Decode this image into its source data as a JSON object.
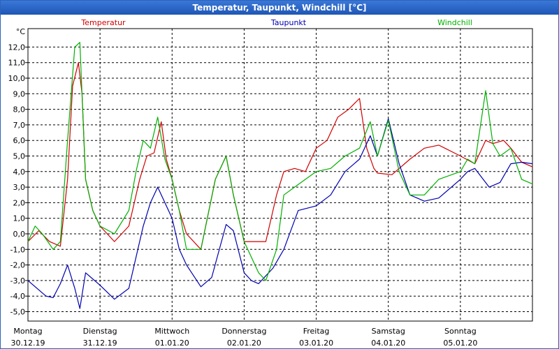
{
  "window": {
    "title": "Temperatur, Taupunkt, Windchill [°C]"
  },
  "chart_data": {
    "type": "line",
    "title": "Temperatur, Taupunkt, Windchill [°C]",
    "unit_label": "°C",
    "ylim": [
      -6,
      13
    ],
    "y_ticks": [
      "12,0",
      "11,0",
      "10,0",
      "9,0",
      "8,0",
      "7,0",
      "6,0",
      "5,0",
      "4,0",
      "3,0",
      "2,0",
      "1,0",
      "0,0",
      "-1,0",
      "-2,0",
      "-3,0",
      "-4,0",
      "-5,0"
    ],
    "y_tick_values": [
      12,
      11,
      10,
      9,
      8,
      7,
      6,
      5,
      4,
      3,
      2,
      1,
      0,
      -1,
      -2,
      -3,
      -4,
      -5
    ],
    "xlim": [
      0,
      7
    ],
    "day_labels": [
      {
        "day": "Montag",
        "date": "30.12.19"
      },
      {
        "day": "Dienstag",
        "date": "31.12.19"
      },
      {
        "day": "Mittwoch",
        "date": "01.01.20"
      },
      {
        "day": "Donnerstag",
        "date": "02.01.20"
      },
      {
        "day": "Freitag",
        "date": "03.01.20"
      },
      {
        "day": "Samstag",
        "date": "04.01.20"
      },
      {
        "day": "Sonntag",
        "date": "05.01.20"
      }
    ],
    "grid": true,
    "legend_position": "top",
    "series": [
      {
        "name": "Temperatur",
        "color": "#d00000",
        "x": [
          0,
          0.15,
          0.3,
          0.45,
          0.55,
          0.62,
          0.7,
          0.75,
          0.8,
          0.9,
          1.0,
          1.2,
          1.4,
          1.45,
          1.55,
          1.65,
          1.75,
          1.85,
          1.92,
          2.0,
          2.1,
          2.2,
          2.4,
          2.6,
          2.75,
          2.85,
          3.0,
          3.15,
          3.3,
          3.45,
          3.55,
          3.7,
          3.85,
          4.0,
          4.15,
          4.3,
          4.45,
          4.6,
          4.7,
          4.8,
          4.85,
          5.05,
          5.3,
          5.5,
          5.7,
          6.0,
          6.2,
          6.35,
          6.45,
          6.6,
          6.7,
          6.85,
          7.0
        ],
        "y": [
          -0.5,
          0.2,
          -0.5,
          -0.8,
          3.5,
          9.5,
          11.0,
          9.0,
          3.5,
          1.5,
          0.5,
          -0.5,
          0.5,
          1.5,
          3.5,
          5.0,
          5.2,
          7.2,
          4.8,
          3.5,
          1.5,
          0.0,
          -1.0,
          3.5,
          5.0,
          2.5,
          -0.5,
          -0.5,
          -0.5,
          2.5,
          4.0,
          4.2,
          4.0,
          5.5,
          6.0,
          7.5,
          8.0,
          8.7,
          5.5,
          4.2,
          3.9,
          3.8,
          4.8,
          5.5,
          5.7,
          5.0,
          4.5,
          6.0,
          5.8,
          6.0,
          5.5,
          4.6,
          4.3
        ]
      },
      {
        "name": "Taupunkt",
        "color": "#0000b0",
        "x": [
          0,
          0.1,
          0.25,
          0.35,
          0.45,
          0.55,
          0.65,
          0.72,
          0.8,
          1.0,
          1.2,
          1.4,
          1.5,
          1.6,
          1.7,
          1.8,
          1.9,
          2.0,
          2.1,
          2.2,
          2.4,
          2.55,
          2.75,
          2.85,
          3.0,
          3.1,
          3.2,
          3.3,
          3.4,
          3.55,
          3.75,
          4.0,
          4.2,
          4.4,
          4.6,
          4.75,
          4.85,
          5.0,
          5.15,
          5.3,
          5.5,
          5.7,
          6.0,
          6.1,
          6.2,
          6.4,
          6.55,
          6.7,
          6.85,
          7.0
        ],
        "y": [
          -3.0,
          -3.4,
          -4.0,
          -4.1,
          -3.2,
          -2.0,
          -3.5,
          -4.8,
          -2.5,
          -3.3,
          -4.2,
          -3.5,
          -1.5,
          0.5,
          2.0,
          3.0,
          2.0,
          1.0,
          -1.0,
          -2.0,
          -3.4,
          -2.8,
          0.6,
          0.2,
          -2.5,
          -3.0,
          -3.2,
          -2.7,
          -2.2,
          -1.0,
          1.5,
          1.8,
          2.5,
          4.0,
          4.8,
          6.3,
          5.0,
          7.4,
          4.5,
          2.5,
          2.1,
          2.3,
          3.5,
          4.0,
          4.2,
          3.0,
          3.3,
          4.5,
          4.6,
          4.5
        ]
      },
      {
        "name": "Windchill",
        "color": "#00b000",
        "x": [
          0,
          0.1,
          0.2,
          0.35,
          0.45,
          0.55,
          0.65,
          0.72,
          0.8,
          0.9,
          1.0,
          1.2,
          1.4,
          1.5,
          1.6,
          1.7,
          1.8,
          1.9,
          2.0,
          2.1,
          2.2,
          2.4,
          2.6,
          2.75,
          2.85,
          3.0,
          3.1,
          3.2,
          3.3,
          3.45,
          3.55,
          3.7,
          3.85,
          4.0,
          4.2,
          4.4,
          4.6,
          4.75,
          4.85,
          5.0,
          5.15,
          5.3,
          5.5,
          5.7,
          6.0,
          6.1,
          6.2,
          6.35,
          6.45,
          6.55,
          6.7,
          6.85,
          7.0
        ],
        "y": [
          -0.5,
          0.5,
          0.0,
          -1.0,
          -0.5,
          6.0,
          12.0,
          12.3,
          3.5,
          1.5,
          0.5,
          0.0,
          1.5,
          4.0,
          6.0,
          5.5,
          7.5,
          4.8,
          3.5,
          1.5,
          -1.0,
          -1.0,
          3.5,
          5.0,
          2.5,
          -0.5,
          -1.5,
          -2.5,
          -3.0,
          -1.0,
          2.5,
          3.0,
          3.5,
          4.0,
          4.2,
          5.0,
          5.5,
          7.2,
          5.0,
          7.3,
          4.0,
          2.5,
          2.5,
          3.5,
          4.0,
          4.8,
          4.5,
          9.2,
          5.8,
          5.0,
          5.5,
          3.5,
          3.2
        ]
      }
    ]
  }
}
